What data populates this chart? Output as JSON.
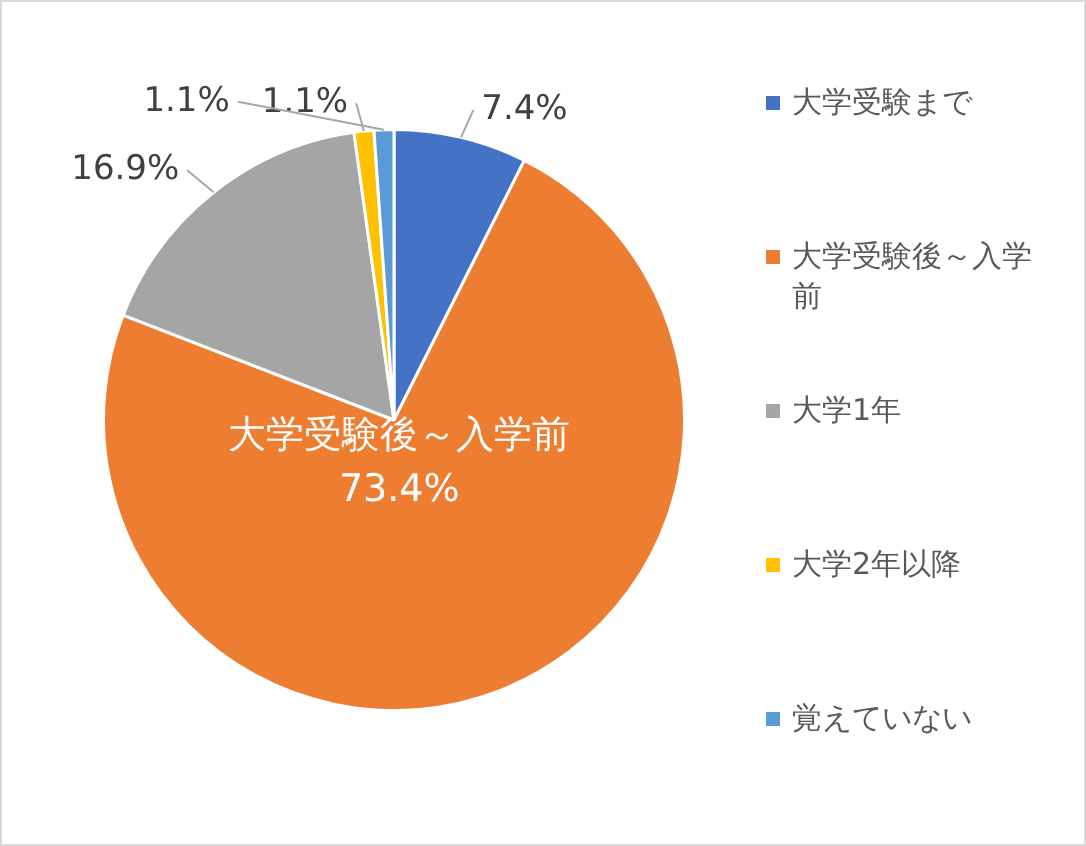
{
  "chart_data": {
    "type": "pie",
    "categories": [
      "大学受験まで",
      "大学受験後～入学前",
      "大学1年",
      "大学2年以降",
      "覚えていない"
    ],
    "values": [
      7.4,
      73.4,
      16.9,
      1.1,
      1.1
    ],
    "colors": [
      "#4472c4",
      "#ed7d31",
      "#a5a5a5",
      "#ffc000",
      "#5b9bd5"
    ],
    "value_labels": [
      "7.4%",
      "73.4%",
      "16.9%",
      "1.1%",
      "1.1%"
    ],
    "legend": "right"
  }
}
